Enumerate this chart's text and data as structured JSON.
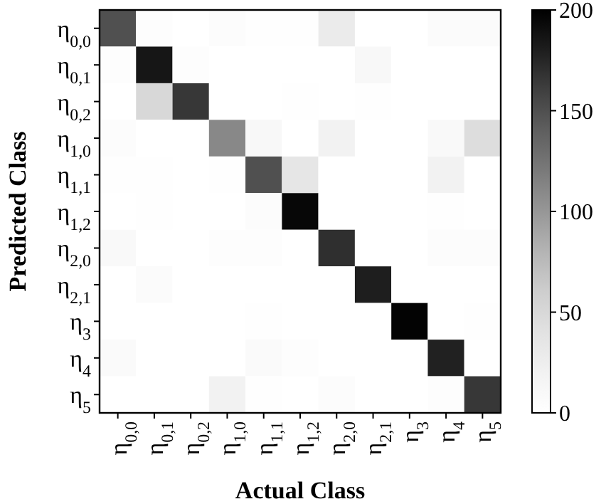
{
  "chart_data": {
    "type": "heatmap",
    "xlabel": "Actual Class",
    "ylabel": "Predicted Class",
    "clabel": null,
    "categories": [
      "η$_{0,0}$",
      "η$_{0,1}$",
      "η$_{0,2}$",
      "η$_{1,0}$",
      "η$_{1,1}$",
      "η$_{1,2}$",
      "η$_{2,0}$",
      "η$_{2,1}$",
      "η$_{3}$",
      "η$_{4}$",
      "η$_{5}$"
    ],
    "y_categories": [
      "η$_{0,0}$",
      "η$_{0,1}$",
      "η$_{0,2}$",
      "η$_{1,0}$",
      "η$_{1,1}$",
      "η$_{1,2}$",
      "η$_{2,0}$",
      "η$_{2,1}$",
      "η$_{3}$",
      "η$_{4}$",
      "η$_{5}$"
    ],
    "cells": [
      [
        150,
        3,
        0,
        5,
        1,
        1,
        30,
        0,
        0,
        6,
        6
      ],
      [
        4,
        185,
        3,
        0,
        0,
        0,
        0,
        12,
        0,
        0,
        0
      ],
      [
        0,
        50,
        165,
        0,
        0,
        2,
        0,
        2,
        0,
        0,
        0
      ],
      [
        5,
        0,
        0,
        110,
        12,
        0,
        20,
        0,
        0,
        10,
        45
      ],
      [
        1,
        2,
        0,
        2,
        150,
        35,
        0,
        0,
        0,
        20,
        0
      ],
      [
        0,
        2,
        0,
        0,
        5,
        195,
        0,
        0,
        0,
        2,
        0
      ],
      [
        10,
        0,
        0,
        4,
        4,
        0,
        170,
        0,
        0,
        5,
        5
      ],
      [
        0,
        6,
        0,
        0,
        0,
        0,
        0,
        180,
        0,
        0,
        0
      ],
      [
        0,
        0,
        0,
        0,
        1,
        0,
        0,
        0,
        198,
        0,
        1
      ],
      [
        8,
        0,
        0,
        0,
        8,
        3,
        0,
        0,
        0,
        178,
        0
      ],
      [
        0,
        0,
        0,
        20,
        2,
        0,
        5,
        0,
        0,
        3,
        165
      ]
    ],
    "clim": [
      0,
      200
    ],
    "cticks": [
      0,
      50,
      100,
      150,
      200
    ]
  }
}
